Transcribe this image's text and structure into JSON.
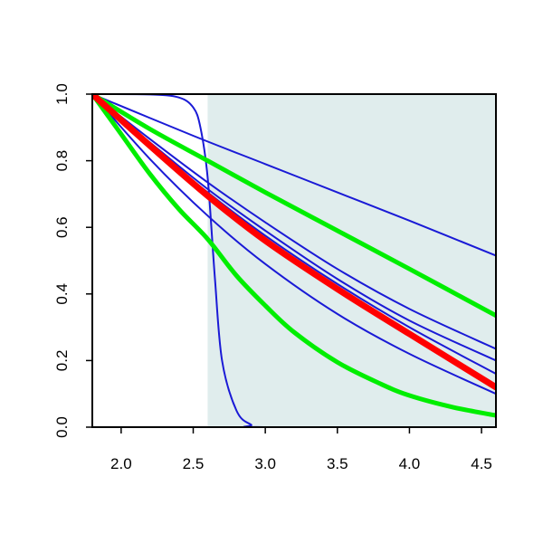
{
  "chart_data": {
    "type": "line",
    "title": "",
    "xlabel": "",
    "ylabel": "",
    "xlim": [
      1.8,
      4.6
    ],
    "ylim": [
      0.0,
      1.0
    ],
    "grid": false,
    "x_ticks": [
      "2.0",
      "2.5",
      "3.0",
      "3.5",
      "4.0",
      "4.5"
    ],
    "y_ticks": [
      "0.0",
      "0.2",
      "0.4",
      "0.6",
      "0.8",
      "1.0"
    ],
    "shaded_region": {
      "x_start": 2.6,
      "x_end": 4.6,
      "color": "#e0eded"
    },
    "series": [
      {
        "color": "#1a1ad6",
        "width": 2,
        "points": [
          [
            1.8,
            1.0
          ],
          [
            2.2,
            0.999
          ],
          [
            2.4,
            0.99
          ],
          [
            2.5,
            0.96
          ],
          [
            2.55,
            0.9
          ],
          [
            2.6,
            0.75
          ],
          [
            2.65,
            0.45
          ],
          [
            2.7,
            0.2
          ],
          [
            2.8,
            0.05
          ],
          [
            2.9,
            0.008
          ],
          [
            3.0,
            0.0
          ],
          [
            4.6,
            0.0
          ]
        ]
      },
      {
        "color": "#1a1ad6",
        "width": 2,
        "points": [
          [
            1.8,
            1.0
          ],
          [
            2.5,
            0.875
          ],
          [
            3.0,
            0.79
          ],
          [
            3.5,
            0.705
          ],
          [
            4.0,
            0.62
          ],
          [
            4.6,
            0.515
          ]
        ]
      },
      {
        "color": "#1a1ad6",
        "width": 2,
        "points": [
          [
            1.8,
            1.0
          ],
          [
            2.2,
            0.865
          ],
          [
            2.6,
            0.735
          ],
          [
            3.0,
            0.615
          ],
          [
            3.5,
            0.475
          ],
          [
            4.0,
            0.355
          ],
          [
            4.6,
            0.235
          ]
        ]
      },
      {
        "color": "#1a1ad6",
        "width": 2,
        "points": [
          [
            1.8,
            1.0
          ],
          [
            2.2,
            0.855
          ],
          [
            2.6,
            0.715
          ],
          [
            3.0,
            0.59
          ],
          [
            3.5,
            0.445
          ],
          [
            4.0,
            0.32
          ],
          [
            4.6,
            0.2
          ]
        ]
      },
      {
        "color": "#1a1ad6",
        "width": 2,
        "points": [
          [
            1.8,
            1.0
          ],
          [
            2.2,
            0.85
          ],
          [
            2.6,
            0.705
          ],
          [
            3.0,
            0.575
          ],
          [
            3.5,
            0.43
          ],
          [
            4.0,
            0.3
          ],
          [
            4.6,
            0.16
          ]
        ]
      },
      {
        "color": "#1a1ad6",
        "width": 2,
        "points": [
          [
            1.8,
            1.0
          ],
          [
            2.2,
            0.805
          ],
          [
            2.6,
            0.635
          ],
          [
            3.0,
            0.49
          ],
          [
            3.5,
            0.34
          ],
          [
            4.0,
            0.22
          ],
          [
            4.6,
            0.1
          ]
        ]
      },
      {
        "color": "#00ee00",
        "width": 5,
        "points": [
          [
            1.8,
            1.0
          ],
          [
            2.2,
            0.895
          ],
          [
            2.6,
            0.8
          ],
          [
            3.0,
            0.705
          ],
          [
            3.5,
            0.59
          ],
          [
            4.0,
            0.475
          ],
          [
            4.6,
            0.335
          ]
        ]
      },
      {
        "color": "#00ee00",
        "width": 5,
        "points": [
          [
            1.8,
            1.0
          ],
          [
            2.0,
            0.88
          ],
          [
            2.2,
            0.76
          ],
          [
            2.4,
            0.655
          ],
          [
            2.6,
            0.565
          ],
          [
            2.8,
            0.455
          ],
          [
            3.0,
            0.365
          ],
          [
            3.2,
            0.285
          ],
          [
            3.5,
            0.195
          ],
          [
            3.8,
            0.13
          ],
          [
            4.0,
            0.095
          ],
          [
            4.3,
            0.06
          ],
          [
            4.6,
            0.035
          ]
        ]
      },
      {
        "color": "#ff0000",
        "width": 7,
        "points": [
          [
            1.8,
            1.0
          ],
          [
            2.2,
            0.845
          ],
          [
            2.6,
            0.695
          ],
          [
            3.0,
            0.56
          ],
          [
            3.5,
            0.415
          ],
          [
            4.0,
            0.28
          ],
          [
            4.6,
            0.12
          ]
        ]
      }
    ]
  }
}
